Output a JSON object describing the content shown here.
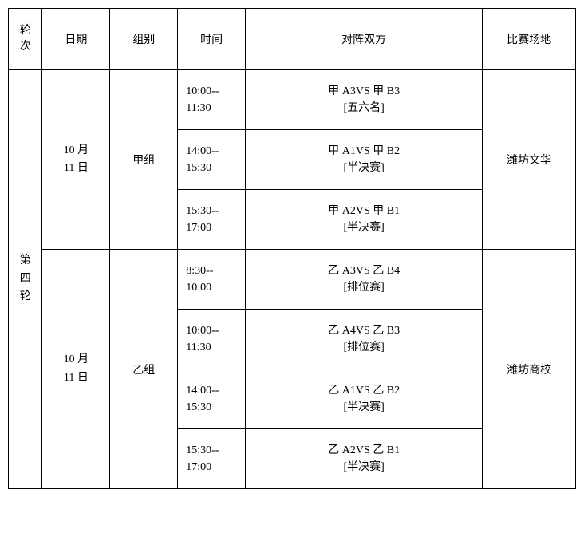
{
  "headers": {
    "round": "轮次",
    "date": "日期",
    "group": "组别",
    "time": "时间",
    "match": "对阵双方",
    "venue": "比赛场地"
  },
  "round_label": "第四轮",
  "group_a": {
    "date": "10 月11 日",
    "group_label": "甲组",
    "venue": "潍坊文华",
    "matches": [
      {
        "time": "10:00--11:30",
        "teams": "甲 A3VS 甲 B3",
        "note": "[五六名]"
      },
      {
        "time": "14:00--15:30",
        "teams": "甲 A1VS 甲 B2",
        "note": "[半决赛]"
      },
      {
        "time": "15:30--17:00",
        "teams": "甲 A2VS 甲 B1",
        "note": "[半决赛]"
      }
    ]
  },
  "group_b": {
    "date": "10 月11 日",
    "group_label": "乙组",
    "venue": "潍坊商校",
    "matches": [
      {
        "time": "8:30--10:00",
        "teams": "乙 A3VS 乙 B4",
        "note": "[排位赛]"
      },
      {
        "time": "10:00--11:30",
        "teams": "乙 A4VS 乙 B3",
        "note": "[排位赛]"
      },
      {
        "time": "14:00--15:30",
        "teams": "乙 A1VS 乙 B2",
        "note": "[半决赛]"
      },
      {
        "time": "15:30--17:00",
        "teams": "乙 A2VS 乙 B1",
        "note": "[半决赛]"
      }
    ]
  }
}
